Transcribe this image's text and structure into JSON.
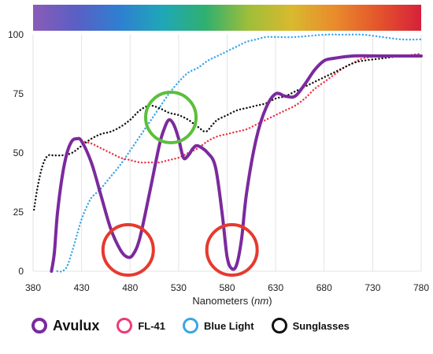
{
  "chart_data": {
    "type": "line",
    "title": "",
    "xlabel": "Nanometers",
    "xlabel_unit": "nm",
    "ylabel": "",
    "xlim": [
      380,
      780
    ],
    "ylim": [
      0,
      100
    ],
    "x_ticks": [
      380,
      430,
      480,
      530,
      580,
      630,
      680,
      730,
      780
    ],
    "y_ticks": [
      0,
      25,
      50,
      75,
      100
    ],
    "grid": "vertical",
    "legend_position": "bottom",
    "spectrum_bar": true,
    "series": [
      {
        "name": "Avulux",
        "color": "#7b2a9e",
        "style": "solid",
        "points": [
          [
            399,
            0
          ],
          [
            402,
            8
          ],
          [
            405,
            24
          ],
          [
            410,
            40
          ],
          [
            415,
            50
          ],
          [
            420,
            55
          ],
          [
            425,
            56
          ],
          [
            430,
            55
          ],
          [
            440,
            46
          ],
          [
            450,
            32
          ],
          [
            460,
            18
          ],
          [
            470,
            9
          ],
          [
            477,
            6
          ],
          [
            483,
            7
          ],
          [
            490,
            14
          ],
          [
            500,
            33
          ],
          [
            510,
            53
          ],
          [
            515,
            60
          ],
          [
            520,
            64
          ],
          [
            525,
            62
          ],
          [
            530,
            56
          ],
          [
            535,
            48
          ],
          [
            540,
            49
          ],
          [
            545,
            52
          ],
          [
            550,
            53
          ],
          [
            560,
            50
          ],
          [
            568,
            44
          ],
          [
            575,
            24
          ],
          [
            580,
            6
          ],
          [
            585,
            1
          ],
          [
            590,
            3
          ],
          [
            595,
            14
          ],
          [
            600,
            33
          ],
          [
            610,
            56
          ],
          [
            620,
            69
          ],
          [
            630,
            75
          ],
          [
            640,
            74
          ],
          [
            650,
            74
          ],
          [
            660,
            79
          ],
          [
            670,
            85
          ],
          [
            680,
            89
          ],
          [
            690,
            90
          ],
          [
            710,
            91
          ],
          [
            740,
            91
          ],
          [
            780,
            91
          ]
        ]
      },
      {
        "name": "FL-41",
        "color": "#ee3344",
        "style": "dotted",
        "points": [
          [
            430,
            55
          ],
          [
            440,
            54
          ],
          [
            450,
            52
          ],
          [
            460,
            50
          ],
          [
            470,
            48
          ],
          [
            480,
            47
          ],
          [
            490,
            46
          ],
          [
            500,
            46
          ],
          [
            510,
            46
          ],
          [
            520,
            47
          ],
          [
            530,
            48
          ],
          [
            540,
            50
          ],
          [
            550,
            52
          ],
          [
            560,
            55
          ],
          [
            570,
            57
          ],
          [
            580,
            58
          ],
          [
            590,
            59
          ],
          [
            600,
            60
          ],
          [
            610,
            62
          ],
          [
            620,
            64
          ],
          [
            630,
            66
          ],
          [
            640,
            68
          ],
          [
            650,
            70
          ],
          [
            660,
            73
          ],
          [
            670,
            77
          ],
          [
            680,
            80
          ],
          [
            690,
            83
          ],
          [
            700,
            86
          ],
          [
            710,
            88
          ],
          [
            720,
            90
          ],
          [
            740,
            91
          ],
          [
            760,
            91
          ],
          [
            780,
            92
          ]
        ]
      },
      {
        "name": "Blue Light",
        "color": "#3aa6e8",
        "style": "dotted",
        "points": [
          [
            405,
            0
          ],
          [
            410,
            0
          ],
          [
            415,
            2
          ],
          [
            420,
            8
          ],
          [
            425,
            15
          ],
          [
            430,
            22
          ],
          [
            435,
            27
          ],
          [
            440,
            31
          ],
          [
            445,
            33
          ],
          [
            450,
            35
          ],
          [
            460,
            40
          ],
          [
            470,
            45
          ],
          [
            480,
            51
          ],
          [
            490,
            57
          ],
          [
            500,
            63
          ],
          [
            510,
            69
          ],
          [
            520,
            75
          ],
          [
            530,
            80
          ],
          [
            540,
            84
          ],
          [
            550,
            86
          ],
          [
            560,
            89
          ],
          [
            570,
            91
          ],
          [
            580,
            93
          ],
          [
            590,
            95
          ],
          [
            600,
            97
          ],
          [
            610,
            98
          ],
          [
            620,
            99
          ],
          [
            630,
            99
          ],
          [
            650,
            99
          ],
          [
            680,
            100
          ],
          [
            700,
            100
          ],
          [
            720,
            100
          ],
          [
            740,
            99
          ],
          [
            760,
            98
          ],
          [
            780,
            98
          ]
        ]
      },
      {
        "name": "Sunglasses",
        "color": "#111111",
        "style": "dotted",
        "points": [
          [
            381,
            26
          ],
          [
            384,
            34
          ],
          [
            388,
            42
          ],
          [
            392,
            47
          ],
          [
            396,
            49
          ],
          [
            400,
            49
          ],
          [
            410,
            49
          ],
          [
            420,
            50
          ],
          [
            430,
            53
          ],
          [
            440,
            56
          ],
          [
            450,
            58
          ],
          [
            460,
            59
          ],
          [
            470,
            61
          ],
          [
            480,
            64
          ],
          [
            490,
            68
          ],
          [
            500,
            70
          ],
          [
            510,
            69
          ],
          [
            520,
            67
          ],
          [
            530,
            66
          ],
          [
            540,
            64
          ],
          [
            550,
            61
          ],
          [
            558,
            59
          ],
          [
            565,
            62
          ],
          [
            570,
            64
          ],
          [
            580,
            66
          ],
          [
            590,
            68
          ],
          [
            600,
            69
          ],
          [
            610,
            70
          ],
          [
            620,
            71
          ],
          [
            630,
            73
          ],
          [
            640,
            74
          ],
          [
            650,
            76
          ],
          [
            660,
            78
          ],
          [
            670,
            80
          ],
          [
            680,
            82
          ],
          [
            690,
            84
          ],
          [
            700,
            86
          ],
          [
            710,
            88
          ],
          [
            720,
            89
          ],
          [
            740,
            90
          ],
          [
            760,
            91
          ],
          [
            780,
            91
          ]
        ]
      }
    ],
    "annotations": [
      {
        "type": "circle",
        "color": "#e53a2e",
        "x": 478,
        "y": 9
      },
      {
        "type": "circle",
        "color": "#e53a2e",
        "x": 585,
        "y": 9
      },
      {
        "type": "circle",
        "color": "#5bbf3c",
        "x": 522,
        "y": 65
      }
    ]
  },
  "legend": {
    "items": [
      {
        "label": "Avulux",
        "color": "#7b2a9e"
      },
      {
        "label": "FL-41",
        "color": "#ee3a7a"
      },
      {
        "label": "Blue Light",
        "color": "#3aa6e8"
      },
      {
        "label": "Sunglasses",
        "color": "#111111"
      }
    ]
  },
  "spectrum_colors": [
    "#8a5bb8",
    "#5a5fc4",
    "#2f7fd1",
    "#1fa7b8",
    "#2fb06f",
    "#9fbe3a",
    "#d9b92e",
    "#e98b2c",
    "#e4552c",
    "#d6213a"
  ]
}
